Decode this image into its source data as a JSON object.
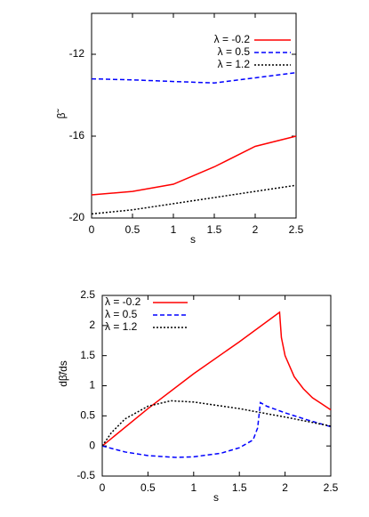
{
  "chart_data": [
    {
      "type": "line",
      "xlabel": "s",
      "ylabel": "β̃",
      "xlim": [
        0,
        2.5
      ],
      "ylim": [
        -20,
        -10
      ],
      "xticks": [
        0,
        0.5,
        1,
        1.5,
        2,
        2.5
      ],
      "yticks": [
        -20,
        -16,
        -12
      ],
      "legend": "top-right",
      "series": [
        {
          "name": "λ = -0.2",
          "color": "#ff0000",
          "linestyle": "solid",
          "x": [
            0,
            0.5,
            1,
            1.5,
            2,
            2.5
          ],
          "values": [
            -18.87,
            -18.7,
            -18.35,
            -17.5,
            -16.5,
            -16.0
          ]
        },
        {
          "name": "λ = 0.5",
          "color": "#0000ff",
          "linestyle": "dashed",
          "x": [
            0,
            0.5,
            1,
            1.5,
            2,
            2.5
          ],
          "values": [
            -13.2,
            -13.25,
            -13.33,
            -13.4,
            -13.15,
            -12.9
          ]
        },
        {
          "name": "λ = 1.2",
          "color": "#000000",
          "linestyle": "dotted",
          "x": [
            0,
            0.5,
            1,
            1.5,
            2,
            2.5
          ],
          "values": [
            -19.8,
            -19.6,
            -19.3,
            -19.0,
            -18.7,
            -18.4
          ]
        }
      ]
    },
    {
      "type": "line",
      "xlabel": "s",
      "ylabel": "dβ̃/ds",
      "xlim": [
        0,
        2.5
      ],
      "ylim": [
        -0.5,
        2.5
      ],
      "xticks": [
        0,
        0.5,
        1,
        1.5,
        2,
        2.5
      ],
      "yticks": [
        -0.5,
        0,
        0.5,
        1,
        1.5,
        2,
        2.5
      ],
      "legend": "top-left",
      "series": [
        {
          "name": "λ = -0.2",
          "color": "#ff0000",
          "linestyle": "solid",
          "x": [
            0,
            0.5,
            1,
            1.5,
            1.94,
            1.96,
            2.0,
            2.1,
            2.2,
            2.3,
            2.4,
            2.5
          ],
          "values": [
            0,
            0.62,
            1.2,
            1.73,
            2.22,
            1.8,
            1.5,
            1.15,
            0.95,
            0.8,
            0.7,
            0.6
          ]
        },
        {
          "name": "λ = 0.5",
          "color": "#0000ff",
          "linestyle": "dashed",
          "x": [
            0,
            0.25,
            0.5,
            0.8,
            1.0,
            1.3,
            1.5,
            1.65,
            1.7,
            1.73,
            1.8,
            2.0,
            2.25,
            2.5
          ],
          "values": [
            0,
            -0.1,
            -0.16,
            -0.19,
            -0.18,
            -0.12,
            -0.03,
            0.1,
            0.3,
            0.72,
            0.66,
            0.55,
            0.43,
            0.32
          ]
        },
        {
          "name": "λ = 1.2",
          "color": "#000000",
          "linestyle": "dotted",
          "x": [
            0,
            0.1,
            0.25,
            0.5,
            0.75,
            1.0,
            1.5,
            2.0,
            2.5
          ],
          "values": [
            0,
            0.22,
            0.45,
            0.66,
            0.75,
            0.73,
            0.62,
            0.48,
            0.33
          ]
        }
      ]
    }
  ]
}
